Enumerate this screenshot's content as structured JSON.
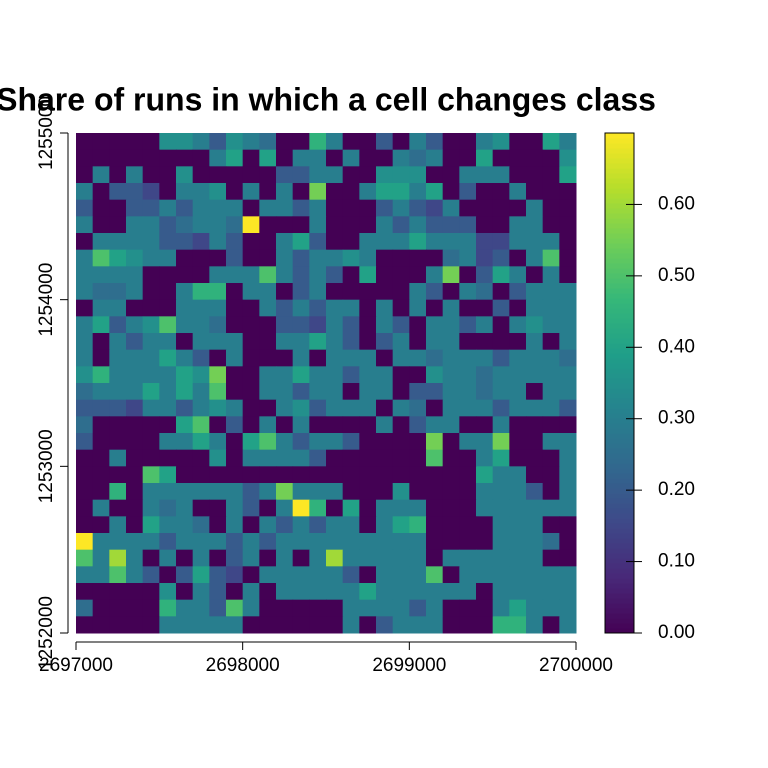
{
  "chart_data": {
    "type": "raster",
    "title": "Share of runs in which a cell changes class",
    "colormap": "viridis",
    "xlim": [
      2697000,
      2700000
    ],
    "ylim": [
      1252000,
      1255000
    ],
    "xticks": [
      2697000,
      2698000,
      2699000,
      2700000
    ],
    "yticks": [
      1252000,
      1253000,
      1254000,
      1255000
    ],
    "zlim": [
      0,
      0.7
    ],
    "zticks": [
      {
        "value": 0,
        "label": "0.00"
      },
      {
        "value": 0.1,
        "label": "0.10"
      },
      {
        "value": 0.2,
        "label": "0.20"
      },
      {
        "value": 0.3,
        "label": "0.30"
      },
      {
        "value": 0.4,
        "label": "0.40"
      },
      {
        "value": 0.5,
        "label": "0.50"
      },
      {
        "value": 0.6,
        "label": "0.60"
      }
    ],
    "values": [
      [
        0,
        0,
        0,
        0,
        0,
        0.35,
        0.35,
        0.3,
        0.2,
        0.35,
        0.3,
        0.25,
        0,
        0,
        0.45,
        0.3,
        0,
        0,
        0.2,
        0,
        0.3,
        0.2,
        0,
        0,
        0.3,
        0.35,
        0,
        0,
        0.4,
        0.3
      ],
      [
        0,
        0,
        0,
        0,
        0,
        0,
        0,
        0,
        0.3,
        0.4,
        0,
        0.4,
        0,
        0.3,
        0.3,
        0,
        0.3,
        0,
        0,
        0.3,
        0.25,
        0.3,
        0,
        0,
        0.4,
        0,
        0,
        0,
        0,
        0.35
      ],
      [
        0,
        0.3,
        0,
        0.3,
        0,
        0,
        0.35,
        0,
        0,
        0,
        0,
        0,
        0.2,
        0.2,
        0.3,
        0.3,
        0,
        0,
        0.35,
        0.35,
        0.35,
        0,
        0,
        0.3,
        0.3,
        0.3,
        0,
        0,
        0,
        0.4
      ],
      [
        0.3,
        0,
        0.2,
        0.2,
        0.15,
        0,
        0.3,
        0.3,
        0.35,
        0,
        0.3,
        0,
        0.3,
        0,
        0.55,
        0,
        0,
        0.3,
        0.4,
        0.4,
        0.3,
        0.4,
        0,
        0.2,
        0,
        0,
        0.3,
        0,
        0,
        0
      ],
      [
        0.2,
        0,
        0,
        0.2,
        0.2,
        0.3,
        0.2,
        0.3,
        0.3,
        0.3,
        0,
        0.3,
        0.3,
        0.2,
        0.3,
        0,
        0,
        0,
        0.2,
        0.3,
        0.2,
        0.15,
        0.3,
        0,
        0,
        0,
        0,
        0.3,
        0,
        0
      ],
      [
        0.3,
        0,
        0,
        0.3,
        0.3,
        0.2,
        0.25,
        0.3,
        0.3,
        0.25,
        0.7,
        0,
        0,
        0,
        0.3,
        0,
        0,
        0,
        0.3,
        0.2,
        0.3,
        0.2,
        0.2,
        0.2,
        0,
        0,
        0.3,
        0.3,
        0,
        0
      ],
      [
        0,
        0.3,
        0.3,
        0.3,
        0.3,
        0.2,
        0.2,
        0.15,
        0.3,
        0.2,
        0,
        0,
        0.3,
        0.4,
        0.2,
        0,
        0,
        0.3,
        0.3,
        0.3,
        0.4,
        0.3,
        0.3,
        0.3,
        0.15,
        0.15,
        0.3,
        0.3,
        0.3,
        0
      ],
      [
        0.3,
        0.5,
        0.4,
        0.35,
        0.3,
        0.3,
        0,
        0,
        0,
        0.2,
        0,
        0,
        0.3,
        0.2,
        0.3,
        0.3,
        0.35,
        0.3,
        0,
        0,
        0,
        0,
        0.25,
        0.3,
        0.15,
        0.2,
        0,
        0.3,
        0.5,
        0
      ],
      [
        0.3,
        0.3,
        0.3,
        0.3,
        0,
        0,
        0,
        0,
        0.3,
        0.3,
        0.3,
        0.5,
        0.3,
        0.2,
        0.3,
        0.2,
        0,
        0.4,
        0,
        0,
        0,
        0.3,
        0.55,
        0,
        0.2,
        0.4,
        0.3,
        0,
        0.3,
        0
      ],
      [
        0.3,
        0.25,
        0.25,
        0.3,
        0,
        0,
        0.3,
        0.45,
        0.45,
        0,
        0.3,
        0.3,
        0,
        0.2,
        0.3,
        0,
        0,
        0,
        0,
        0,
        0.3,
        0.2,
        0,
        0.3,
        0.25,
        0,
        0.2,
        0.3,
        0.3,
        0.3
      ],
      [
        0,
        0.3,
        0.3,
        0,
        0,
        0,
        0.3,
        0.3,
        0.3,
        0,
        0,
        0.3,
        0.2,
        0.3,
        0.2,
        0.3,
        0.3,
        0,
        0.3,
        0,
        0.3,
        0,
        0.3,
        0,
        0,
        0.2,
        0,
        0.3,
        0.3,
        0.3
      ],
      [
        0.3,
        0.4,
        0.2,
        0.3,
        0.35,
        0.5,
        0.3,
        0.3,
        0.25,
        0,
        0,
        0,
        0.2,
        0.2,
        0.15,
        0.3,
        0.2,
        0,
        0.3,
        0.2,
        0,
        0.3,
        0.3,
        0.2,
        0.3,
        0,
        0.3,
        0.35,
        0.3,
        0.3
      ],
      [
        0.3,
        0,
        0.3,
        0.2,
        0.3,
        0.3,
        0,
        0.3,
        0.3,
        0.3,
        0,
        0,
        0.3,
        0.3,
        0.4,
        0.3,
        0.2,
        0,
        0.2,
        0.3,
        0,
        0.3,
        0.3,
        0,
        0,
        0,
        0,
        0.3,
        0,
        0.3
      ],
      [
        0.3,
        0,
        0.3,
        0.3,
        0.3,
        0.4,
        0.3,
        0.2,
        0,
        0.3,
        0,
        0,
        0,
        0.3,
        0,
        0.3,
        0.3,
        0.3,
        0,
        0.3,
        0.3,
        0.25,
        0.3,
        0.3,
        0.3,
        0.2,
        0.3,
        0.3,
        0.3,
        0.25
      ],
      [
        0.35,
        0.45,
        0.3,
        0.3,
        0.3,
        0.3,
        0.4,
        0.35,
        0.55,
        0,
        0,
        0.3,
        0.3,
        0.4,
        0.3,
        0.3,
        0.2,
        0.3,
        0.3,
        0,
        0,
        0.35,
        0.3,
        0.3,
        0.25,
        0.3,
        0.3,
        0.3,
        0.3,
        0.3
      ],
      [
        0.25,
        0.3,
        0.3,
        0.3,
        0.4,
        0.3,
        0.4,
        0.3,
        0.5,
        0,
        0,
        0.3,
        0.3,
        0.2,
        0.3,
        0.3,
        0,
        0.3,
        0.3,
        0,
        0.2,
        0.2,
        0.3,
        0.3,
        0.25,
        0.3,
        0.3,
        0,
        0.3,
        0.3
      ],
      [
        0.2,
        0.2,
        0.2,
        0.15,
        0.3,
        0.3,
        0.2,
        0.3,
        0.35,
        0.3,
        0,
        0,
        0.3,
        0.35,
        0.2,
        0.3,
        0.3,
        0.3,
        0,
        0.3,
        0.25,
        0,
        0.3,
        0.3,
        0.3,
        0.2,
        0.3,
        0.3,
        0.3,
        0.2
      ],
      [
        0.25,
        0,
        0,
        0,
        0,
        0,
        0.4,
        0.5,
        0,
        0.2,
        0,
        0.3,
        0,
        0.3,
        0,
        0,
        0,
        0,
        0.3,
        0,
        0.2,
        0.3,
        0.3,
        0,
        0,
        0.3,
        0,
        0,
        0,
        0
      ],
      [
        0.2,
        0,
        0,
        0,
        0,
        0.3,
        0.3,
        0.4,
        0.3,
        0,
        0.4,
        0.5,
        0.3,
        0.2,
        0.3,
        0.3,
        0.2,
        0,
        0,
        0,
        0,
        0.55,
        0,
        0.3,
        0.3,
        0.55,
        0,
        0,
        0.3,
        0.3
      ],
      [
        0,
        0,
        0.3,
        0,
        0,
        0,
        0,
        0,
        0.35,
        0,
        0.3,
        0.3,
        0.3,
        0.3,
        0.2,
        0,
        0,
        0,
        0,
        0,
        0,
        0.5,
        0,
        0,
        0.3,
        0.4,
        0,
        0,
        0,
        0.3
      ],
      [
        0,
        0,
        0,
        0,
        0.5,
        0.4,
        0,
        0,
        0,
        0,
        0,
        0,
        0,
        0,
        0,
        0,
        0,
        0,
        0,
        0,
        0,
        0,
        0,
        0,
        0.4,
        0.3,
        0.3,
        0,
        0,
        0.3
      ],
      [
        0,
        0,
        0.45,
        0,
        0.3,
        0.3,
        0.3,
        0.3,
        0.3,
        0.3,
        0.2,
        0.3,
        0.55,
        0.3,
        0.3,
        0.3,
        0,
        0,
        0,
        0.35,
        0,
        0,
        0,
        0,
        0.3,
        0.3,
        0.3,
        0.2,
        0,
        0.3
      ],
      [
        0,
        0.3,
        0,
        0,
        0.3,
        0.25,
        0.3,
        0,
        0,
        0.3,
        0.2,
        0,
        0.3,
        0.7,
        0.45,
        0,
        0.4,
        0,
        0.3,
        0.3,
        0.3,
        0,
        0,
        0,
        0.3,
        0.3,
        0.3,
        0.3,
        0.3,
        0.3
      ],
      [
        0,
        0,
        0.3,
        0,
        0.4,
        0.3,
        0.3,
        0.25,
        0,
        0.3,
        0,
        0.3,
        0.2,
        0.3,
        0.2,
        0.3,
        0.3,
        0,
        0.3,
        0.4,
        0.45,
        0,
        0,
        0,
        0,
        0.3,
        0.3,
        0.3,
        0,
        0
      ],
      [
        0.7,
        0.3,
        0.3,
        0.3,
        0.3,
        0.2,
        0.3,
        0.3,
        0.3,
        0.2,
        0.3,
        0.2,
        0.3,
        0.3,
        0.3,
        0.3,
        0.3,
        0.3,
        0.3,
        0.3,
        0.3,
        0,
        0,
        0,
        0,
        0.3,
        0.3,
        0.3,
        0.25,
        0
      ],
      [
        0.5,
        0.3,
        0.6,
        0.3,
        0,
        0.3,
        0,
        0.3,
        0,
        0.2,
        0.3,
        0,
        0.3,
        0,
        0.3,
        0.6,
        0.3,
        0.3,
        0.3,
        0.3,
        0.3,
        0,
        0.3,
        0.3,
        0.3,
        0.3,
        0.3,
        0.3,
        0,
        0
      ],
      [
        0.3,
        0.3,
        0.5,
        0.3,
        0.2,
        0,
        0.2,
        0.4,
        0.2,
        0.15,
        0,
        0.3,
        0.3,
        0.3,
        0.3,
        0.3,
        0.2,
        0,
        0.3,
        0.3,
        0.3,
        0.5,
        0,
        0.3,
        0.3,
        0.3,
        0.3,
        0.3,
        0.3,
        0.3
      ],
      [
        0,
        0,
        0,
        0,
        0,
        0.35,
        0,
        0.3,
        0.2,
        0,
        0.3,
        0,
        0.3,
        0.3,
        0.3,
        0.3,
        0.3,
        0.4,
        0.3,
        0.3,
        0.3,
        0.3,
        0.3,
        0.3,
        0,
        0.3,
        0.3,
        0.3,
        0.3,
        0.3
      ],
      [
        0.25,
        0,
        0,
        0,
        0,
        0.45,
        0.3,
        0.3,
        0.2,
        0.5,
        0.3,
        0,
        0,
        0,
        0,
        0,
        0.3,
        0.3,
        0.3,
        0.3,
        0.2,
        0.3,
        0,
        0,
        0,
        0.3,
        0.4,
        0.3,
        0.3,
        0.3
      ],
      [
        0,
        0,
        0,
        0,
        0,
        0.3,
        0.3,
        0.3,
        0.3,
        0.3,
        0,
        0,
        0,
        0,
        0,
        0,
        0.3,
        0,
        0.2,
        0.3,
        0.3,
        0.3,
        0,
        0,
        0,
        0.45,
        0.45,
        0.3,
        0,
        0.3
      ]
    ]
  }
}
